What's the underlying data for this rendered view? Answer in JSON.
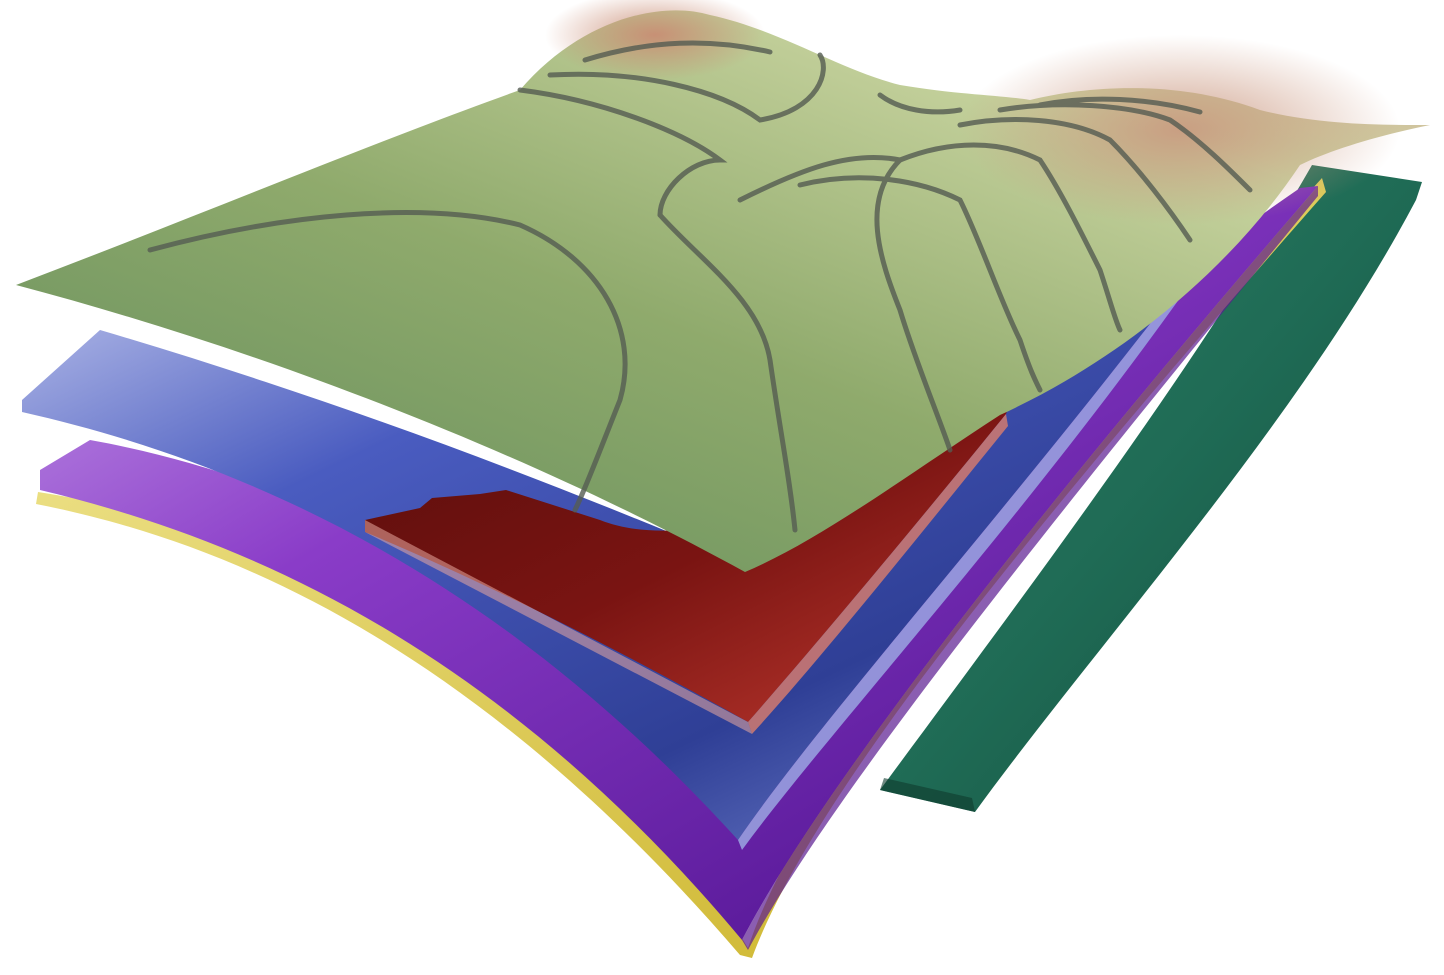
{
  "diagram": {
    "layers": [
      {
        "name": "green-layer",
        "color": "#1f6b55"
      },
      {
        "name": "yellow-layer",
        "color": "#d6c33a"
      },
      {
        "name": "purple-layer",
        "color": "#7b2bb8"
      },
      {
        "name": "blue-layer",
        "color": "#4557b0"
      },
      {
        "name": "red-layer",
        "color": "#8e1a16"
      },
      {
        "name": "terrain-surface",
        "color": "#8fa66a"
      }
    ],
    "contour_color": "#555c52",
    "peak_color": "#c99a80"
  }
}
